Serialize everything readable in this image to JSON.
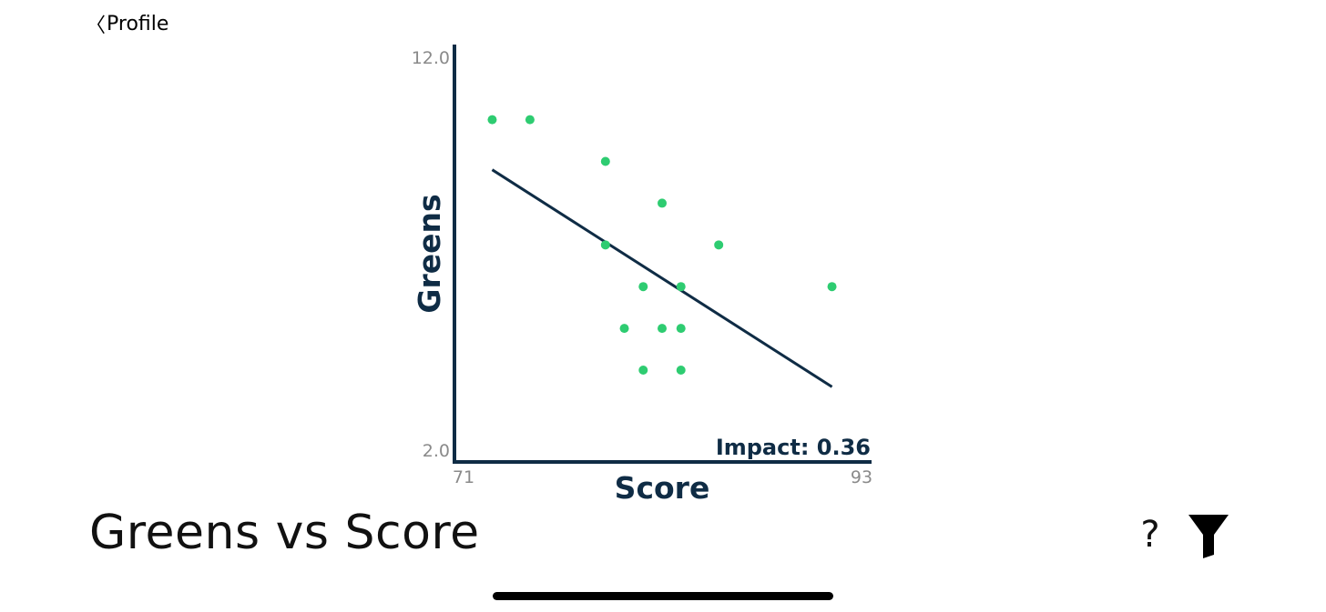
{
  "nav": {
    "back_label": "Profile",
    "back_icon": "chevron-left-icon"
  },
  "title": "Greens vs Score",
  "actions": {
    "help_label": "?",
    "filter_icon": "funnel-icon"
  },
  "colors": {
    "axis": "#0f2c45",
    "point": "#2ecc71",
    "trend": "#0f2c45",
    "tick_text": "#8a8a8a"
  },
  "chart_data": {
    "type": "scatter",
    "xlabel": "Score",
    "ylabel": "Greens",
    "xlim": [
      71,
      93
    ],
    "ylim": [
      2.0,
      12.0
    ],
    "x_tick_labels": [
      "71",
      "93"
    ],
    "y_tick_labels": [
      "12.0",
      "2.0"
    ],
    "annotation": "Impact: 0.36",
    "points": [
      {
        "x": 73,
        "y": 10.2
      },
      {
        "x": 75,
        "y": 10.2
      },
      {
        "x": 79,
        "y": 9.2
      },
      {
        "x": 82,
        "y": 8.2
      },
      {
        "x": 79,
        "y": 7.2
      },
      {
        "x": 85,
        "y": 7.2
      },
      {
        "x": 81,
        "y": 6.2
      },
      {
        "x": 83,
        "y": 6.2
      },
      {
        "x": 91,
        "y": 6.2
      },
      {
        "x": 80,
        "y": 5.2
      },
      {
        "x": 82,
        "y": 5.2
      },
      {
        "x": 83,
        "y": 5.2
      },
      {
        "x": 81,
        "y": 4.2
      },
      {
        "x": 83,
        "y": 4.2
      }
    ],
    "trend_line": {
      "x": [
        73,
        91
      ],
      "y": [
        9.0,
        3.8
      ]
    }
  }
}
